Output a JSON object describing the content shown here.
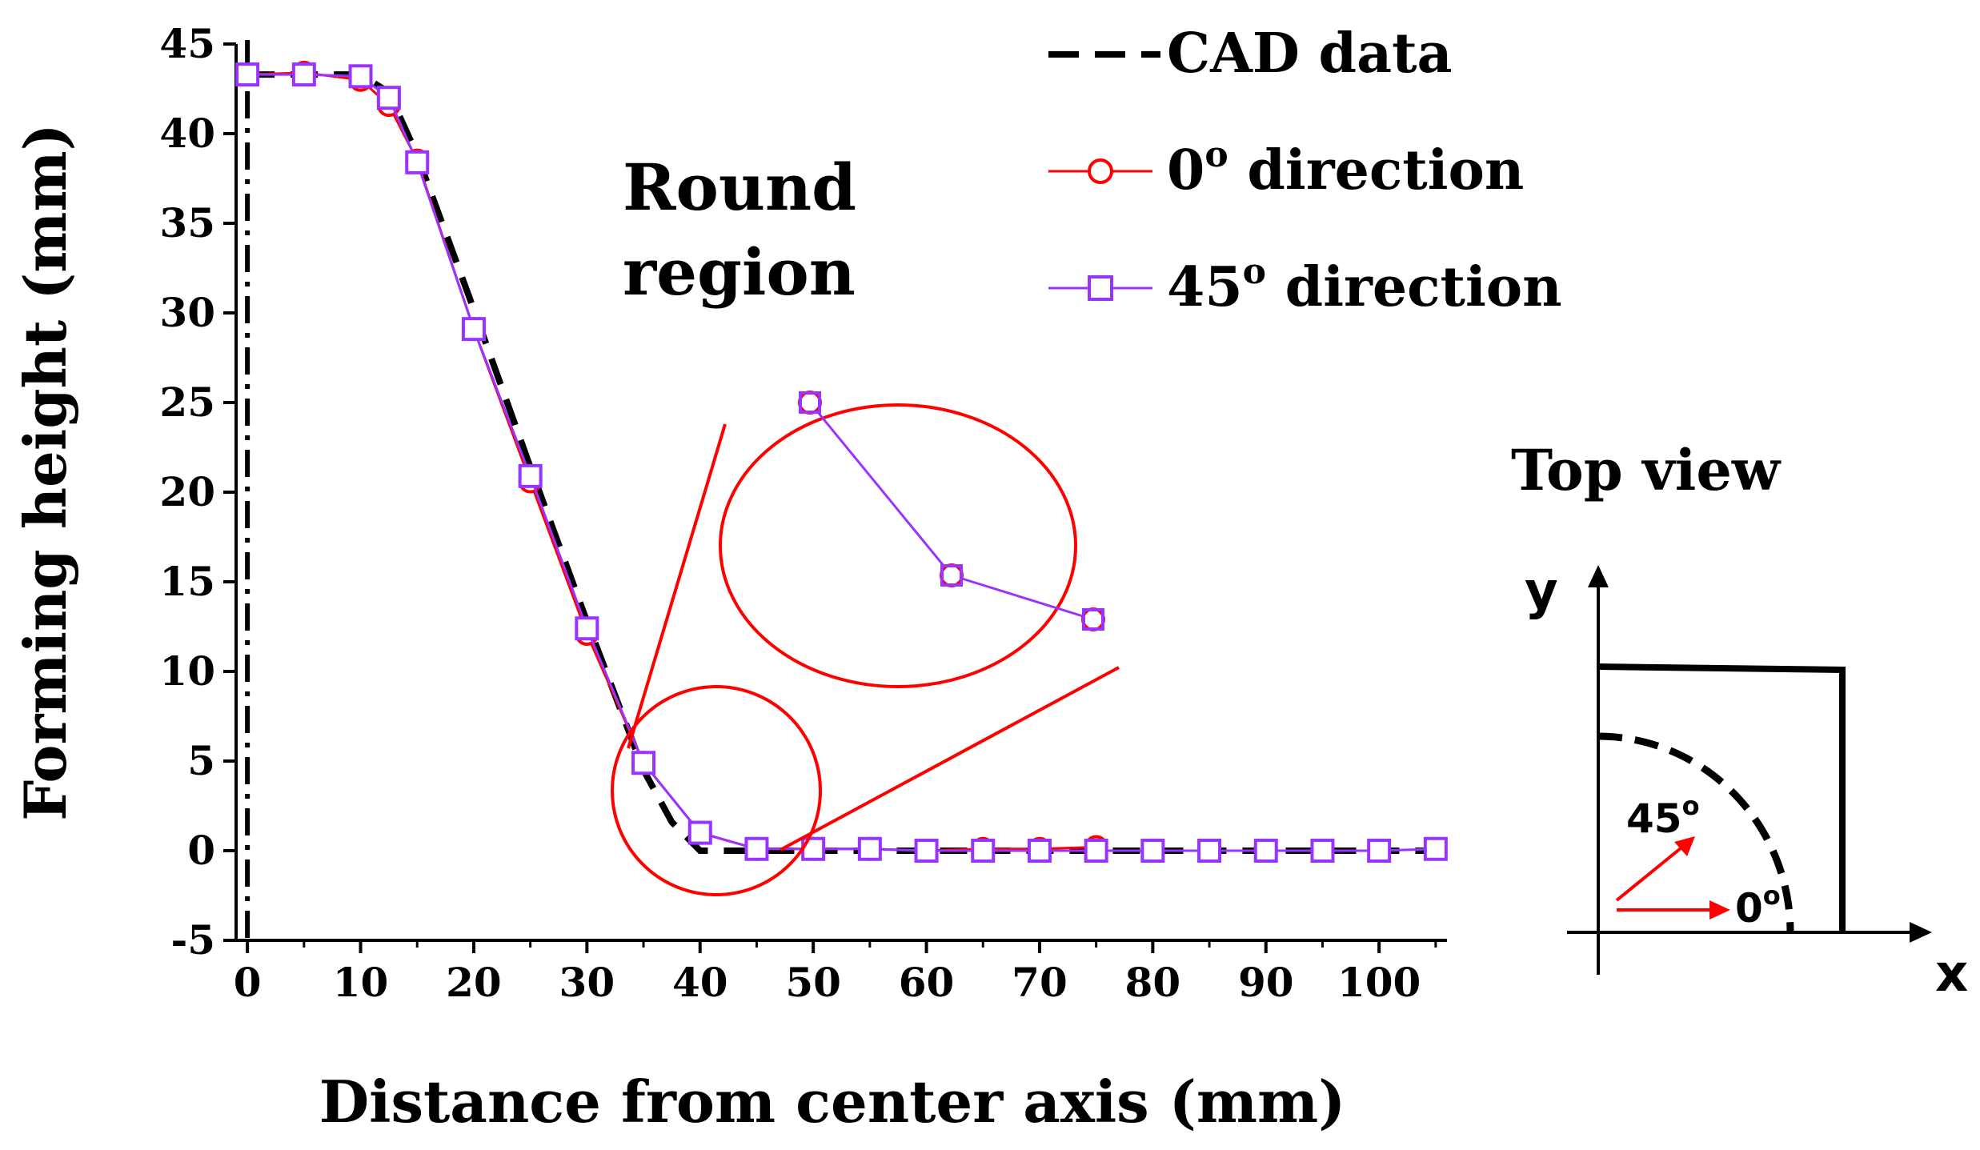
{
  "chart_data": {
    "type": "line",
    "title": "",
    "xlabel": "Distance from center axis (mm)",
    "ylabel": "Forming height (mm)",
    "xlim": [
      -1,
      106
    ],
    "ylim": [
      -5,
      45
    ],
    "xticks": [
      0,
      10,
      20,
      30,
      40,
      50,
      60,
      70,
      80,
      90,
      100
    ],
    "yticks": [
      -5,
      0,
      5,
      10,
      15,
      20,
      25,
      30,
      35,
      40,
      45
    ],
    "grid": false,
    "center_axis_x": 0,
    "series": [
      {
        "name": "CAD data",
        "style": "dashed",
        "color": "#000000",
        "x": [
          0,
          5,
          10,
          12.5,
          15,
          20,
          25,
          30,
          35,
          37.5,
          40,
          45,
          50,
          60,
          70,
          80,
          90,
          100,
          105
        ],
        "y": [
          43.3,
          43.3,
          43.3,
          42.3,
          38.8,
          30.2,
          21.4,
          12.8,
          4.5,
          1.6,
          0,
          0,
          0,
          0,
          0,
          0,
          0,
          0,
          0
        ]
      },
      {
        "name": "0° direction",
        "marker": "circle",
        "color": "#ff0000",
        "x": [
          0,
          5,
          10,
          12.5,
          15,
          20,
          25,
          30,
          35,
          40,
          45,
          50,
          55,
          60,
          65,
          70,
          75
        ],
        "y": [
          43.3,
          43.4,
          43.0,
          41.6,
          38.5,
          29.1,
          20.6,
          12.1,
          4.9,
          1.0,
          0.1,
          0.1,
          0.1,
          0,
          0.1,
          0.1,
          0.2
        ]
      },
      {
        "name": "45° direction",
        "marker": "square",
        "color": "#9933ff",
        "x": [
          0,
          5,
          10,
          12.5,
          15,
          20,
          25,
          30,
          35,
          40,
          45,
          50,
          55,
          60,
          65,
          70,
          75,
          80,
          85,
          90,
          95,
          100,
          105
        ],
        "y": [
          43.3,
          43.3,
          43.2,
          42.0,
          38.4,
          29.1,
          20.9,
          12.4,
          4.9,
          1.0,
          0.1,
          0.1,
          0.1,
          0,
          0,
          0,
          0,
          0,
          0,
          0,
          0,
          0,
          0.1
        ]
      }
    ],
    "legend": {
      "placement": "top-right",
      "entries": [
        {
          "label": "CAD data"
        },
        {
          "base": "0",
          "sup": "o",
          "rest": " direction"
        },
        {
          "base": "45",
          "sup": "o",
          "rest": " direction"
        }
      ]
    },
    "annotations": {
      "region_label_line1": "Round",
      "region_label_line2": "region",
      "zoom_circle_color": "#ff0000"
    }
  },
  "inset": {
    "title": "Top view",
    "x_axis": "x",
    "y_axis": "y",
    "angle_45": "45",
    "angle_0": "0",
    "degree_mark": "o",
    "arrow_color": "#ff0000"
  }
}
